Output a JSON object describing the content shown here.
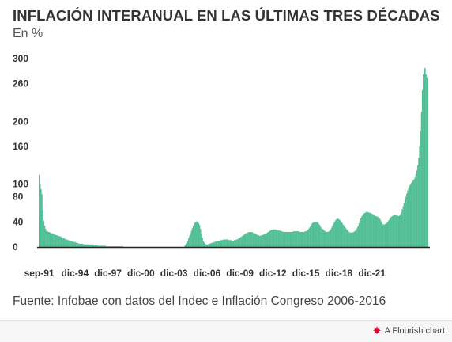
{
  "header": {
    "title": "INFLACIÓN INTERANUAL EN LAS ÚLTIMAS TRES DÉCADAS",
    "subtitle": "En %"
  },
  "source": "Fuente: Infobae con datos del Indec e Inflación Congreso 2006-2016",
  "footer": {
    "credit_label": "A Flourish chart",
    "credit_icon": "flourish-logo-icon"
  },
  "colors": {
    "bar": "#52bf96",
    "bar_stroke": "#3ea780",
    "axis": "#222222",
    "text": "#333333"
  },
  "chart_data": {
    "type": "bar",
    "title": "INFLACIÓN INTERANUAL EN LAS ÚLTIMAS TRES DÉCADAS",
    "subtitle": "En %",
    "xlabel": "",
    "ylabel": "",
    "ylim": [
      0,
      300
    ],
    "yticks": [
      0,
      40,
      80,
      100,
      160,
      200,
      260,
      300
    ],
    "grid": false,
    "x_tick_labels": [
      "sep-91",
      "dic-94",
      "dic-97",
      "dic-00",
      "dic-03",
      "dic-06",
      "dic-09",
      "dic-12",
      "dic-15",
      "dic-18",
      "dic-21"
    ],
    "x_tick_indices": [
      0,
      39,
      75,
      111,
      147,
      183,
      219,
      255,
      291,
      327,
      363
    ],
    "series": [
      {
        "values": [
          115,
          100,
          92,
          84,
          60,
          42,
          34,
          29,
          26,
          25,
          24,
          24,
          23,
          22,
          22,
          21,
          20,
          20,
          19,
          19,
          18,
          18,
          17,
          17,
          16,
          15,
          14,
          14,
          13,
          12,
          12,
          11,
          11,
          10,
          10,
          9,
          9,
          8,
          8,
          8,
          7,
          7,
          6,
          6,
          5,
          5,
          5,
          5,
          5,
          4,
          4,
          4,
          4,
          4,
          4,
          4,
          4,
          4,
          4,
          4,
          3,
          3,
          3,
          3,
          2,
          2,
          2,
          2,
          2,
          2,
          2,
          2,
          2,
          1,
          1,
          1,
          1,
          1,
          1,
          1,
          1,
          1,
          1,
          1,
          1,
          1,
          1,
          1,
          1,
          1,
          1,
          1,
          0,
          0,
          0,
          0,
          0,
          0,
          0,
          0,
          0,
          0,
          0,
          0,
          0,
          0,
          0,
          0,
          0,
          0,
          0,
          0,
          0,
          0,
          0,
          0,
          0,
          0,
          0,
          0,
          0,
          0,
          0,
          0,
          0,
          0,
          0,
          0,
          0,
          0,
          0,
          0,
          0,
          0,
          0,
          0,
          0,
          0,
          0,
          0,
          0,
          0,
          0,
          0,
          0,
          0,
          0,
          0,
          0,
          0,
          0,
          0,
          0,
          0,
          0,
          0,
          0,
          0,
          0,
          2,
          4,
          6,
          10,
          14,
          18,
          22,
          26,
          30,
          34,
          37,
          39,
          40,
          41,
          40,
          38,
          35,
          29,
          22,
          15,
          10,
          7,
          5,
          4,
          4,
          4,
          5,
          5,
          6,
          6,
          7,
          7,
          8,
          8,
          9,
          9,
          10,
          10,
          10,
          11,
          11,
          11,
          12,
          12,
          12,
          12,
          12,
          12,
          11,
          11,
          11,
          10,
          10,
          10,
          11,
          11,
          12,
          12,
          13,
          14,
          15,
          16,
          17,
          18,
          19,
          20,
          21,
          22,
          23,
          23,
          24,
          24,
          24,
          24,
          23,
          22,
          22,
          21,
          20,
          19,
          19,
          18,
          18,
          18,
          19,
          19,
          20,
          20,
          21,
          22,
          23,
          24,
          25,
          26,
          27,
          27,
          28,
          28,
          28,
          28,
          27,
          27,
          26,
          26,
          26,
          25,
          25,
          24,
          24,
          24,
          24,
          24,
          24,
          24,
          24,
          24,
          24,
          24,
          25,
          25,
          25,
          25,
          25,
          25,
          25,
          24,
          24,
          24,
          24,
          24,
          24,
          25,
          25,
          26,
          27,
          29,
          31,
          33,
          36,
          38,
          39,
          40,
          40,
          40,
          40,
          39,
          37,
          35,
          32,
          30,
          29,
          27,
          26,
          25,
          24,
          24,
          24,
          25,
          26,
          28,
          31,
          34,
          37,
          40,
          42,
          44,
          45,
          45,
          44,
          43,
          41,
          39,
          37,
          35,
          33,
          31,
          29,
          27,
          25,
          24,
          23,
          23,
          23,
          23,
          24,
          25,
          26,
          28,
          31,
          34,
          38,
          42,
          46,
          49,
          51,
          53,
          54,
          55,
          56,
          56,
          55,
          55,
          54,
          54,
          53,
          52,
          51,
          50,
          49,
          49,
          48,
          48,
          46,
          44,
          41,
          38,
          36,
          36,
          36,
          37,
          38,
          40,
          42,
          44,
          46,
          48,
          49,
          50,
          51,
          51,
          51,
          50,
          50,
          49,
          50,
          52,
          55,
          60,
          65,
          70,
          75,
          80,
          85,
          90,
          94,
          97,
          100,
          102,
          104,
          106,
          108,
          112,
          116,
          122,
          130,
          142,
          160,
          185,
          215,
          250,
          275,
          283,
          285,
          275,
          270,
          272
        ]
      }
    ]
  }
}
